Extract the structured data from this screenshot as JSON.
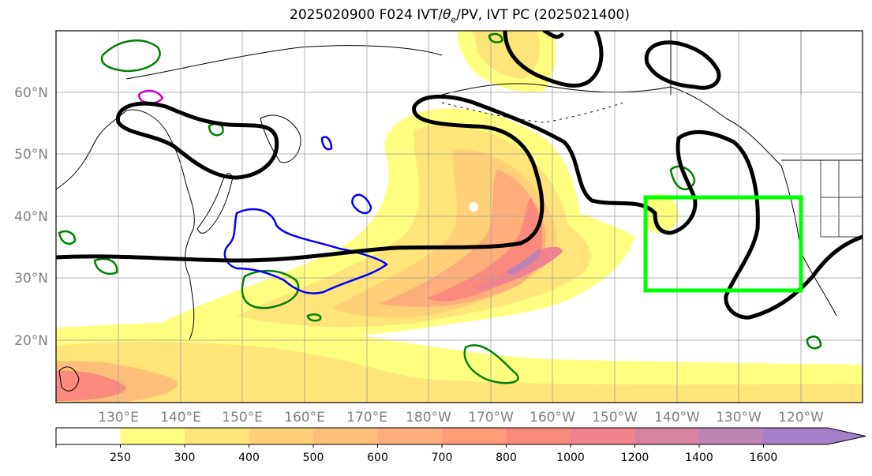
{
  "title": "2025020900 F024 IVT/θe/PV, IVT PC (2025021400)",
  "title_parts": {
    "prefix": "2025020900 F024 IVT/",
    "theta": "θ",
    "theta_sub": "e",
    "suffix": "/PV, IVT PC (2025021400)"
  },
  "map": {
    "lon_range": [
      120,
      250
    ],
    "lat_range": [
      10,
      70
    ],
    "lat_labels": [
      "20°N",
      "30°N",
      "40°N",
      "50°N",
      "60°N"
    ],
    "lon_labels": [
      "130°E",
      "140°E",
      "150°E",
      "160°E",
      "170°E",
      "180°W",
      "170°W",
      "160°W",
      "150°W",
      "140°W",
      "130°W",
      "120°W"
    ],
    "highlight_box": {
      "lon": [
        215,
        240
      ],
      "lat": [
        28,
        43
      ],
      "color": "#00ff00"
    }
  },
  "colorbar": {
    "ticks": [
      "250",
      "300",
      "400",
      "500",
      "600",
      "700",
      "800",
      "1000",
      "1200",
      "1400",
      "1600"
    ],
    "colors": [
      "#ffffff",
      "#ffff80",
      "#ffe47a",
      "#ffd077",
      "#ffbf7a",
      "#ffad7a",
      "#ff9c78",
      "#fb8a7e",
      "#f0838e",
      "#d783a0",
      "#bd84b6",
      "#a57fc7"
    ],
    "extend": "max"
  },
  "colors": {
    "ivt_contour_black": "#000000",
    "pv_green": "#008000",
    "pv_blue": "#0000ff",
    "magenta": "#cc00cc",
    "grid": "#a0a0a0"
  }
}
